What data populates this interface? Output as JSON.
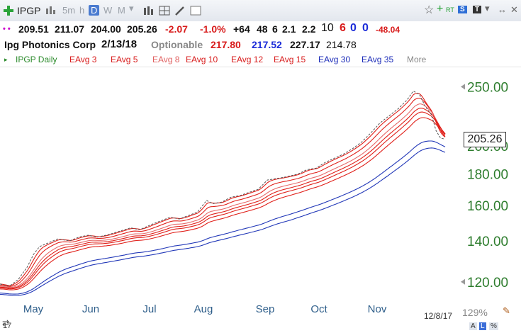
{
  "toolbar": {
    "symbol": "IPGP",
    "intervals": [
      "5m",
      "h",
      "D",
      "W",
      "M"
    ],
    "active_interval": "D",
    "badges": [
      "RT",
      "S",
      "T"
    ]
  },
  "quote": {
    "open": "209.51",
    "high": "211.07",
    "low": "204.00",
    "close": "205.26",
    "change": "-2.07",
    "change_pct": "-1.0%",
    "stat1": "+64",
    "stat2": "48",
    "stat3": "6",
    "stat4": "2.1",
    "stat5": "2.2",
    "stat6": "10",
    "stat7": "6",
    "stat8": "0",
    "stat9": "0",
    "stat10": "-48.04"
  },
  "info": {
    "company": "Ipg Photonics Corp",
    "date": "2/13/18",
    "optionable": "Optionable",
    "v1": "217.80",
    "v2": "217.52",
    "v3": "227.17",
    "v4": "214.78"
  },
  "legend": {
    "daily": "IPGP Daily",
    "items": [
      "EAvg 3",
      "EAvg 5",
      "EAvg 8",
      "EAvg 10",
      "EAvg 12",
      "EAvg 15",
      "EAvg 30",
      "EAvg 35"
    ],
    "more": "More"
  },
  "chart_data": {
    "type": "line",
    "title": "",
    "x_labels": [
      "May",
      "Jun",
      "Jul",
      "Aug",
      "Sep",
      "Oct",
      "Nov"
    ],
    "y_ticks": [
      120,
      140,
      160,
      180,
      200,
      250
    ],
    "y_tick_labels": [
      "120.00",
      "140.00",
      "160.00",
      "180.00",
      "200.00",
      "250.00"
    ],
    "ylim": [
      114,
      255
    ],
    "y_scale": "log",
    "last_price": "205.26",
    "last_date": "12/8/17",
    "zoom": "129%",
    "price_path": [
      [
        0,
        119
      ],
      [
        6,
        118
      ],
      [
        12,
        121
      ],
      [
        18,
        127
      ],
      [
        22,
        133
      ],
      [
        26,
        137
      ],
      [
        32,
        139
      ],
      [
        38,
        141
      ],
      [
        46,
        140
      ],
      [
        52,
        142
      ],
      [
        58,
        143
      ],
      [
        64,
        142
      ],
      [
        70,
        143
      ],
      [
        78,
        145
      ],
      [
        86,
        147
      ],
      [
        92,
        146
      ],
      [
        100,
        149
      ],
      [
        106,
        151
      ],
      [
        112,
        153
      ],
      [
        118,
        152
      ],
      [
        124,
        154
      ],
      [
        130,
        156
      ],
      [
        136,
        163
      ],
      [
        140,
        161
      ],
      [
        146,
        162
      ],
      [
        152,
        165
      ],
      [
        158,
        166
      ],
      [
        164,
        168
      ],
      [
        170,
        170
      ],
      [
        176,
        176
      ],
      [
        182,
        177
      ],
      [
        188,
        178
      ],
      [
        196,
        180
      ],
      [
        202,
        183
      ],
      [
        208,
        184
      ],
      [
        214,
        188
      ],
      [
        220,
        191
      ],
      [
        226,
        194
      ],
      [
        232,
        198
      ],
      [
        238,
        203
      ],
      [
        244,
        210
      ],
      [
        250,
        218
      ],
      [
        256,
        224
      ],
      [
        262,
        230
      ],
      [
        268,
        238
      ],
      [
        272,
        246
      ],
      [
        276,
        243
      ],
      [
        280,
        232
      ],
      [
        284,
        225
      ],
      [
        287,
        212
      ],
      [
        290,
        206
      ],
      [
        293,
        205.26
      ]
    ],
    "series": [
      {
        "name": "EAvg 3",
        "color": "#e0201a",
        "offset": 0.0
      },
      {
        "name": "EAvg 5",
        "color": "#e0201a",
        "offset": -0.012
      },
      {
        "name": "EAvg 8",
        "color": "#e66a6a",
        "offset": -0.024
      },
      {
        "name": "EAvg 10",
        "color": "#e0201a",
        "offset": -0.033
      },
      {
        "name": "EAvg 12",
        "color": "#e0201a",
        "offset": -0.041
      },
      {
        "name": "EAvg 15",
        "color": "#e0201a",
        "offset": -0.052
      },
      {
        "name": "EAvg 30",
        "color": "#2238b8",
        "offset": -0.095
      },
      {
        "name": "EAvg 35",
        "color": "#2238b8",
        "offset": -0.108
      }
    ]
  },
  "bottom": {
    "left_label": "17",
    "badges": [
      "A",
      "L",
      "%"
    ]
  }
}
